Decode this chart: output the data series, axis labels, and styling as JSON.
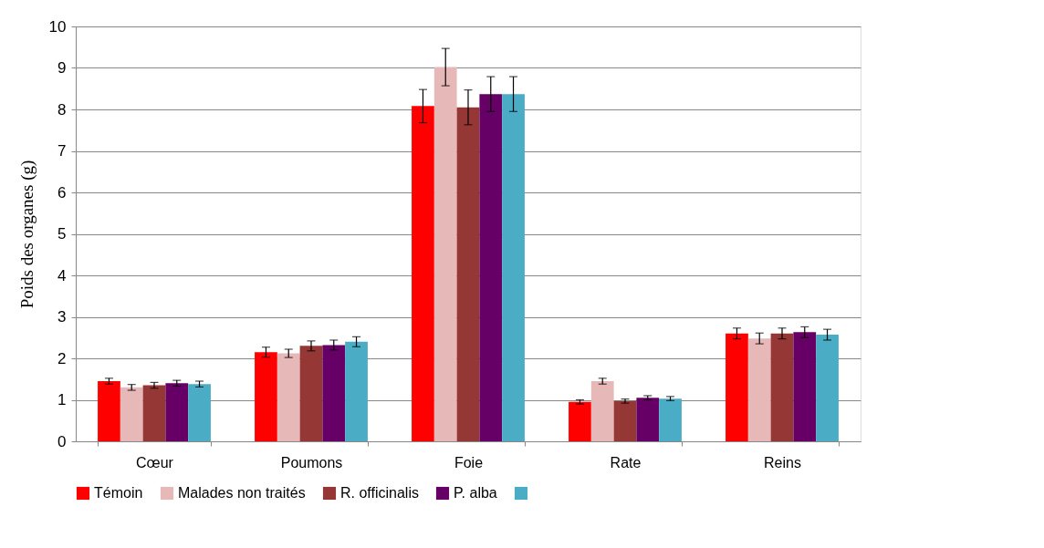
{
  "chart_data": {
    "type": "bar",
    "ylabel": "Poids des organes (g)",
    "categories": [
      "Cœur",
      "Poumons",
      "Foie",
      "Rate",
      "Reins"
    ],
    "ylim": [
      0,
      10
    ],
    "yticks": [
      0,
      1,
      2,
      3,
      4,
      5,
      6,
      7,
      8,
      9,
      10
    ],
    "grid": "y",
    "legend": "bottom",
    "series": [
      {
        "name": "Témoin",
        "color": "#ff0000",
        "values": [
          1.45,
          2.15,
          8.08,
          0.95,
          2.6
        ],
        "errors": [
          0.07,
          0.12,
          0.4,
          0.05,
          0.13
        ]
      },
      {
        "name": "Malades non traités",
        "color": "#e6b8b7",
        "values": [
          1.3,
          2.12,
          9.02,
          1.45,
          2.48
        ],
        "errors": [
          0.07,
          0.1,
          0.45,
          0.07,
          0.13
        ]
      },
      {
        "name": "R. officinalis",
        "color": "#953735",
        "values": [
          1.35,
          2.3,
          8.05,
          0.97,
          2.6
        ],
        "errors": [
          0.07,
          0.12,
          0.42,
          0.05,
          0.13
        ]
      },
      {
        "name": "P. alba",
        "color": "#660066",
        "values": [
          1.4,
          2.32,
          8.37,
          1.05,
          2.63
        ],
        "errors": [
          0.07,
          0.12,
          0.42,
          0.05,
          0.13
        ]
      },
      {
        "color": "#4bacc6",
        "values": [
          1.38,
          2.4,
          8.37,
          1.03,
          2.57
        ],
        "errors": [
          0.07,
          0.12,
          0.42,
          0.05,
          0.13
        ]
      }
    ]
  }
}
